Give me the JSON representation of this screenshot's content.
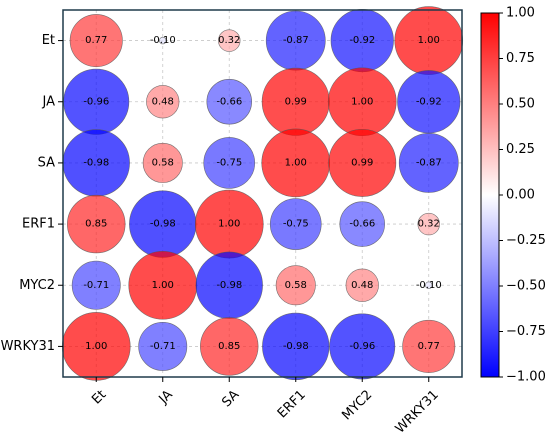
{
  "chart_data": {
    "type": "heatmap",
    "variables": [
      "Et",
      "JA",
      "SA",
      "ERF1",
      "MYC2",
      "WRKY31"
    ],
    "matrix": [
      [
        0.77,
        -0.1,
        0.32,
        -0.87,
        -0.92,
        1.0
      ],
      [
        -0.96,
        0.48,
        -0.66,
        0.99,
        1.0,
        -0.92
      ],
      [
        -0.98,
        0.58,
        -0.75,
        1.0,
        0.99,
        -0.87
      ],
      [
        0.85,
        -0.98,
        1.0,
        -0.75,
        -0.66,
        0.32
      ],
      [
        -0.71,
        1.0,
        -0.98,
        0.58,
        0.48,
        -0.1
      ],
      [
        1.0,
        -0.71,
        0.85,
        -0.98,
        -0.96,
        0.77
      ]
    ],
    "cell_labels": [
      [
        "0.77",
        "-0.10",
        "0.32",
        "-0.87",
        "-0.92",
        "1.00"
      ],
      [
        "-0.96",
        "0.48",
        "-0.66",
        "0.99",
        "1.00",
        "-0.92"
      ],
      [
        "-0.98",
        "0.58",
        "-0.75",
        "1.00",
        "0.99",
        "-0.87"
      ],
      [
        "0.85",
        "-0.98",
        "1.00",
        "-0.75",
        "-0.66",
        "0.32"
      ],
      [
        "-0.71",
        "1.00",
        "-0.98",
        "0.58",
        "0.48",
        "-0.10"
      ],
      [
        "1.00",
        "-0.71",
        "0.85",
        "-0.98",
        "-0.96",
        "0.77"
      ]
    ],
    "colorbar": {
      "range": [
        -1.0,
        1.0
      ],
      "ticks": [
        1.0,
        0.75,
        0.5,
        0.25,
        0.0,
        -0.25,
        -0.5,
        -0.75,
        -1.0
      ],
      "tick_labels": [
        "1.00",
        "0.75",
        "0.50",
        "0.25",
        "0.00",
        "−0.25",
        "−0.50",
        "−0.75",
        "−1.00"
      ],
      "colormap": "bwr",
      "low_color": "#0000ff",
      "mid_color": "#ffffff",
      "high_color": "#ff0000"
    },
    "marker": "circle sized by |r|",
    "grid": true,
    "title": "",
    "xlabel": "",
    "ylabel": ""
  }
}
